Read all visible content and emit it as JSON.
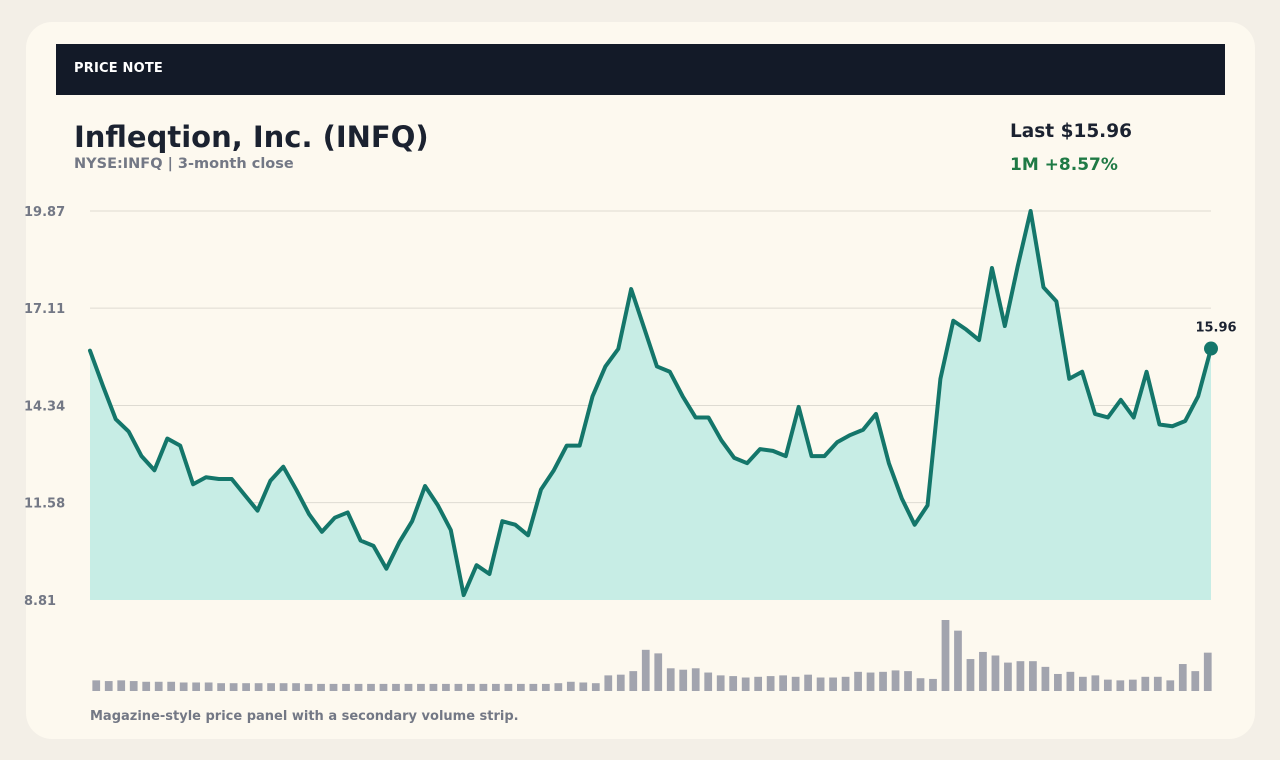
{
  "header": {
    "label": "PRICE NOTE"
  },
  "stock": {
    "title": "Infleqtion, Inc. (INFQ)",
    "subtitle": "NYSE:INFQ | 3-month close",
    "last": "Last $15.96",
    "change": "1M +8.57%"
  },
  "caption": "Magazine-style price panel with a secondary volume strip.",
  "colors": {
    "line": "#14766a",
    "area": "#c7ede5",
    "volume": "#a2a4ae",
    "grid": "#dedbd2",
    "header_bg": "#131a28",
    "positive": "#1f7a45"
  },
  "chart_data": {
    "type": "line",
    "ylim": [
      8.81,
      19.87
    ],
    "yticks": [
      "19.87",
      "17.11",
      "14.34",
      "11.58",
      "8.81"
    ],
    "last_label": "15.96",
    "series": [
      {
        "values": [
          15.9,
          14.9,
          13.95,
          13.6,
          12.9,
          12.5,
          13.4,
          13.2,
          12.1,
          12.3,
          12.25,
          12.25,
          11.8,
          11.35,
          12.2,
          12.6,
          11.95,
          11.25,
          10.75,
          11.15,
          11.3,
          10.5,
          10.35,
          9.7,
          10.45,
          11.05,
          12.05,
          11.5,
          10.8,
          8.95,
          9.8,
          9.55,
          11.05,
          10.95,
          10.65,
          11.95,
          12.5,
          13.2,
          13.2,
          14.6,
          15.45,
          15.95,
          17.65,
          16.55,
          15.45,
          15.3,
          14.6,
          14.0,
          14.0,
          13.35,
          12.85,
          12.7,
          13.1,
          13.05,
          12.9,
          14.3,
          12.9,
          12.9,
          13.3,
          13.5,
          13.65,
          14.1,
          12.7,
          11.7,
          10.95,
          11.5,
          15.1,
          16.75,
          16.5,
          16.2,
          18.25,
          16.6,
          18.3,
          19.87,
          17.7,
          17.3,
          15.1,
          15.3,
          14.1,
          14.0,
          14.5,
          14.0,
          15.3,
          13.8,
          13.75,
          13.9,
          14.6,
          15.96
        ]
      }
    ],
    "volume": [
      0.15,
      0.14,
      0.15,
      0.14,
      0.13,
      0.13,
      0.13,
      0.12,
      0.12,
      0.12,
      0.11,
      0.11,
      0.11,
      0.11,
      0.11,
      0.11,
      0.11,
      0.1,
      0.1,
      0.1,
      0.1,
      0.1,
      0.1,
      0.1,
      0.1,
      0.1,
      0.1,
      0.1,
      0.1,
      0.1,
      0.1,
      0.1,
      0.1,
      0.1,
      0.1,
      0.1,
      0.1,
      0.11,
      0.13,
      0.12,
      0.11,
      0.22,
      0.23,
      0.28,
      0.58,
      0.53,
      0.32,
      0.3,
      0.32,
      0.26,
      0.22,
      0.21,
      0.19,
      0.2,
      0.21,
      0.22,
      0.2,
      0.23,
      0.19,
      0.19,
      0.2,
      0.27,
      0.26,
      0.27,
      0.29,
      0.28,
      0.18,
      0.17,
      1.0,
      0.85,
      0.45,
      0.55,
      0.5,
      0.4,
      0.42,
      0.42,
      0.34,
      0.24,
      0.27,
      0.2,
      0.22,
      0.16,
      0.15,
      0.16,
      0.2,
      0.2,
      0.15,
      0.38,
      0.28,
      0.54
    ]
  }
}
